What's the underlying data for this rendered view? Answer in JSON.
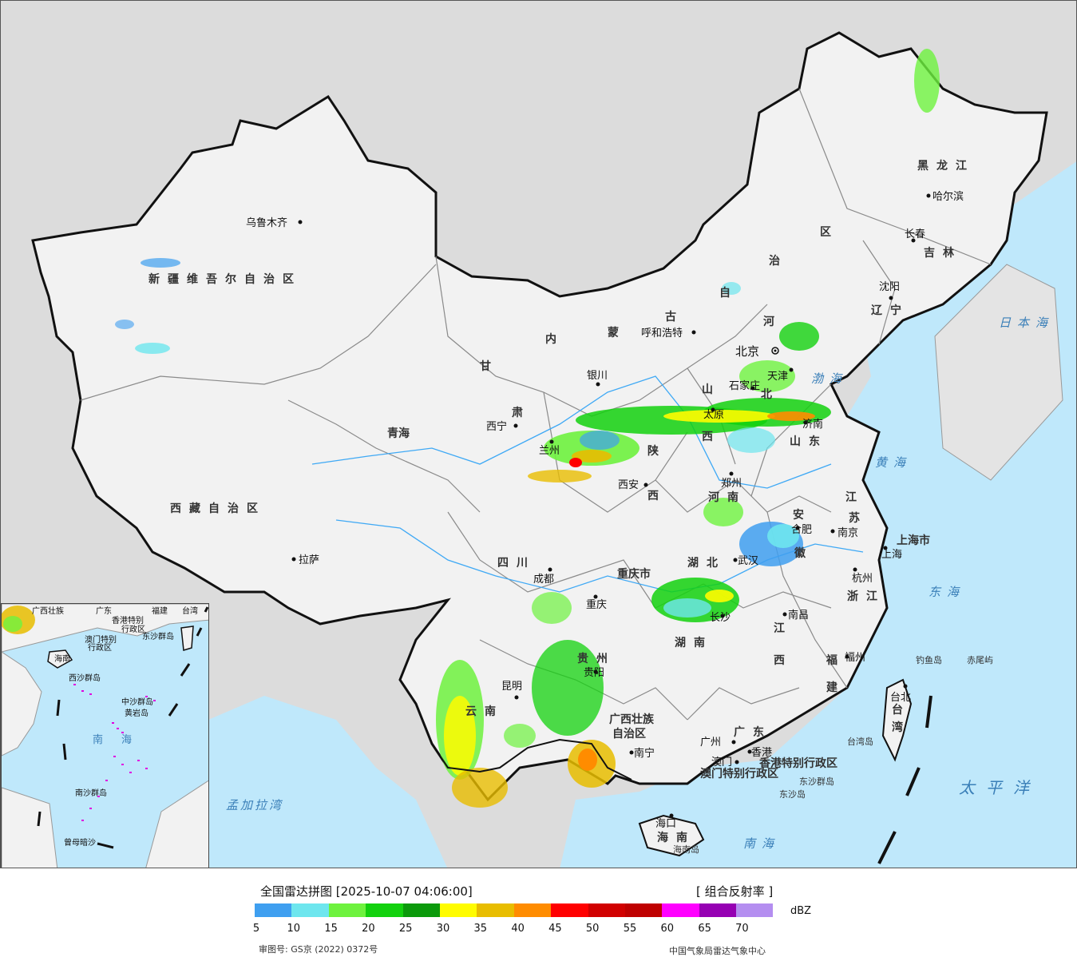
{
  "map": {
    "colors": {
      "sea": "#bfe8fb",
      "land": "#f2f2f2",
      "outside": "#dcdcdc",
      "border": "#111111",
      "province": "#8a8a8a",
      "river": "#3fa9f5"
    },
    "provinces": [
      {
        "id": "xinjiang",
        "label": "新疆维吾尔自治区"
      },
      {
        "id": "xizang",
        "label": "西藏自治区"
      },
      {
        "id": "qinghai",
        "label": "青海"
      },
      {
        "id": "gansu",
        "label": "甘"
      },
      {
        "id": "gansu2",
        "label": "肃"
      },
      {
        "id": "neimenggu1",
        "label": "内"
      },
      {
        "id": "neimenggu2",
        "label": "蒙"
      },
      {
        "id": "neimenggu3",
        "label": "古"
      },
      {
        "id": "neimenggu4",
        "label": "自"
      },
      {
        "id": "neimenggu5",
        "label": "治"
      },
      {
        "id": "neimenggu6",
        "label": "区"
      },
      {
        "id": "heilongjiang",
        "label": "黑龙江"
      },
      {
        "id": "jilin",
        "label": "吉林"
      },
      {
        "id": "liaoning",
        "label": "辽宁"
      },
      {
        "id": "hebei1",
        "label": "河"
      },
      {
        "id": "hebei2",
        "label": "北"
      },
      {
        "id": "shanxi1",
        "label": "山"
      },
      {
        "id": "shanxi2",
        "label": "西"
      },
      {
        "id": "shaanxi1",
        "label": "陕"
      },
      {
        "id": "shaanxi2",
        "label": "西"
      },
      {
        "id": "shandong",
        "label": "山东"
      },
      {
        "id": "henan",
        "label": "河南"
      },
      {
        "id": "jiangsu1",
        "label": "江"
      },
      {
        "id": "jiangsu2",
        "label": "苏"
      },
      {
        "id": "anhui1",
        "label": "安"
      },
      {
        "id": "anhui2",
        "label": "徽"
      },
      {
        "id": "sichuan",
        "label": "四川"
      },
      {
        "id": "chongqing",
        "label": "重庆市"
      },
      {
        "id": "hubei",
        "label": "湖北"
      },
      {
        "id": "hunan",
        "label": "湖南"
      },
      {
        "id": "jiangxi1",
        "label": "江"
      },
      {
        "id": "jiangxi2",
        "label": "西"
      },
      {
        "id": "zhejiang",
        "label": "浙江"
      },
      {
        "id": "fujian1",
        "label": "福"
      },
      {
        "id": "fujian2",
        "label": "建"
      },
      {
        "id": "guizhou",
        "label": "贵州"
      },
      {
        "id": "yunnan",
        "label": "云南"
      },
      {
        "id": "guangxi1",
        "label": "广西壮族"
      },
      {
        "id": "guangxi2",
        "label": "自治区"
      },
      {
        "id": "guangdong",
        "label": "广东"
      },
      {
        "id": "shanghai",
        "label": "上海市"
      },
      {
        "id": "hainan",
        "label": "海南"
      },
      {
        "id": "taiwan1",
        "label": "台"
      },
      {
        "id": "taiwan2",
        "label": "湾"
      },
      {
        "id": "hk",
        "label": "香港特别行政区"
      },
      {
        "id": "macau",
        "label": "澳门特别行政区"
      }
    ],
    "cities": [
      {
        "id": "urumqi",
        "label": "乌鲁木齐"
      },
      {
        "id": "lhasa",
        "label": "拉萨"
      },
      {
        "id": "xining",
        "label": "西宁"
      },
      {
        "id": "lanzhou",
        "label": "兰州"
      },
      {
        "id": "yinchuan",
        "label": "银川"
      },
      {
        "id": "hohhot",
        "label": "呼和浩特"
      },
      {
        "id": "beijing",
        "label": "北京"
      },
      {
        "id": "tianjin",
        "label": "天津"
      },
      {
        "id": "shijiazhuang",
        "label": "石家庄"
      },
      {
        "id": "taiyuan",
        "label": "太原"
      },
      {
        "id": "jinan",
        "label": "济南"
      },
      {
        "id": "xian",
        "label": "西安"
      },
      {
        "id": "zhengzhou",
        "label": "郑州"
      },
      {
        "id": "hefei",
        "label": "合肥"
      },
      {
        "id": "nanjing",
        "label": "南京"
      },
      {
        "id": "shanghai_c",
        "label": "上海"
      },
      {
        "id": "hangzhou",
        "label": "杭州"
      },
      {
        "id": "wuhan",
        "label": "武汉"
      },
      {
        "id": "chengdu",
        "label": "成都"
      },
      {
        "id": "chongqing_c",
        "label": "重庆"
      },
      {
        "id": "changsha",
        "label": "长沙"
      },
      {
        "id": "nanchang",
        "label": "南昌"
      },
      {
        "id": "fuzhou",
        "label": "福州"
      },
      {
        "id": "guiyang",
        "label": "贵阳"
      },
      {
        "id": "kunming",
        "label": "昆明"
      },
      {
        "id": "nanning",
        "label": "南宁"
      },
      {
        "id": "guangzhou",
        "label": "广州"
      },
      {
        "id": "hongkong",
        "label": "香港"
      },
      {
        "id": "macau_c",
        "label": "澳门"
      },
      {
        "id": "haikou",
        "label": "海口"
      },
      {
        "id": "taibei",
        "label": "台北"
      },
      {
        "id": "harbin",
        "label": "哈尔滨"
      },
      {
        "id": "changchun",
        "label": "长春"
      },
      {
        "id": "shenyang",
        "label": "沈阳"
      }
    ],
    "seas": [
      {
        "id": "bohai",
        "label": "渤海"
      },
      {
        "id": "huanghai",
        "label": "黄海"
      },
      {
        "id": "donghai",
        "label": "东海"
      },
      {
        "id": "nanhai",
        "label": "南海"
      },
      {
        "id": "taipingyang",
        "label": "太平洋"
      },
      {
        "id": "ribenhai",
        "label": "日本海"
      },
      {
        "id": "mengjialawan",
        "label": "孟加拉湾"
      }
    ],
    "islands": [
      {
        "id": "diaoyu",
        "label": "钓鱼岛"
      },
      {
        "id": "chiwei",
        "label": "赤尾屿"
      },
      {
        "id": "taiwandao",
        "label": "台湾岛"
      },
      {
        "id": "dongsha1",
        "label": "东沙群岛"
      },
      {
        "id": "dongsha2",
        "label": "东沙岛"
      },
      {
        "id": "hainandao",
        "label": "海南岛"
      }
    ],
    "inset": {
      "labels": [
        "广西壮族",
        "广东",
        "福建",
        "台湾",
        "香港特别",
        "行政区",
        "澳门特别",
        "行政区",
        "东沙群岛",
        "海南",
        "西沙群岛",
        "中沙群岛",
        "黄岩岛",
        "南",
        "海",
        "南沙群岛",
        "曾母暗沙"
      ]
    }
  },
  "legend": {
    "title": "全国雷达拼图 [2025-10-07 04:06:00]",
    "product": "[ 组合反射率 ]",
    "unit": "dBZ",
    "colors": [
      "#3f9ff0",
      "#6ee6ee",
      "#6ef23e",
      "#13d10e",
      "#0b9a0b",
      "#fffc00",
      "#e8bd00",
      "#ff8c00",
      "#ff0000",
      "#d10000",
      "#bf0000",
      "#ff00ff",
      "#9600b3",
      "#b48ef0"
    ],
    "ticks": [
      "5",
      "10",
      "15",
      "20",
      "25",
      "30",
      "35",
      "40",
      "45",
      "50",
      "55",
      "60",
      "65",
      "70"
    ],
    "footer_left": "审图号: GS京 (2022) 0372号",
    "footer_right": "中国气象局雷达气象中心"
  }
}
